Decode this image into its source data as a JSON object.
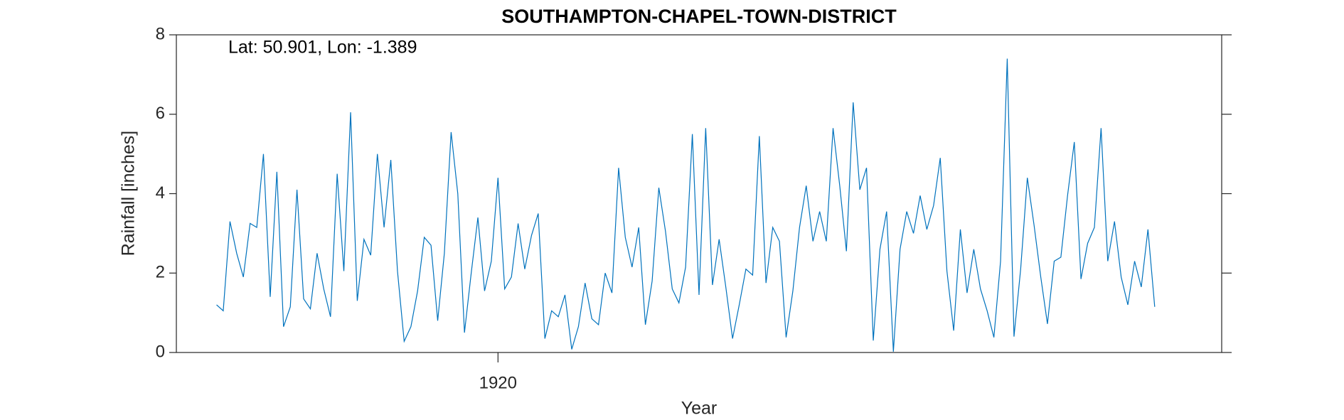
{
  "chart_data": {
    "type": "line",
    "title": "SOUTHAMPTON-CHAPEL-TOWN-DISTRICT",
    "annotation": "Lat: 50.901, Lon: -1.389",
    "x_label": "Year",
    "y_label": "Rainfall [inches]",
    "xlim": [
      1916,
      1929
    ],
    "xticks": [
      1920
    ],
    "ylim": [
      0,
      8
    ],
    "yticks": [
      0,
      2,
      4,
      6,
      8
    ],
    "x": [
      1916.5,
      1916.583,
      1916.667,
      1916.75,
      1916.833,
      1916.917,
      1917,
      1917.083,
      1917.167,
      1917.25,
      1917.333,
      1917.417,
      1917.5,
      1917.583,
      1917.667,
      1917.75,
      1917.833,
      1917.917,
      1918,
      1918.083,
      1918.167,
      1918.25,
      1918.333,
      1918.417,
      1918.5,
      1918.583,
      1918.667,
      1918.75,
      1918.833,
      1918.917,
      1919,
      1919.083,
      1919.167,
      1919.25,
      1919.333,
      1919.417,
      1919.5,
      1919.583,
      1919.667,
      1919.75,
      1919.833,
      1919.917,
      1920,
      1920.083,
      1920.167,
      1920.25,
      1920.333,
      1920.417,
      1920.5,
      1920.583,
      1920.667,
      1920.75,
      1920.833,
      1920.917,
      1921,
      1921.083,
      1921.167,
      1921.25,
      1921.333,
      1921.417,
      1921.5,
      1921.583,
      1921.667,
      1921.75,
      1921.833,
      1921.917,
      1922,
      1922.083,
      1922.167,
      1922.25,
      1922.333,
      1922.417,
      1922.5,
      1922.583,
      1922.667,
      1922.75,
      1922.833,
      1922.917,
      1923,
      1923.083,
      1923.167,
      1923.25,
      1923.333,
      1923.417,
      1923.5,
      1923.583,
      1923.667,
      1923.75,
      1923.833,
      1923.917,
      1924,
      1924.083,
      1924.167,
      1924.25,
      1924.333,
      1924.417,
      1924.5,
      1924.583,
      1924.667,
      1924.75,
      1924.833,
      1924.917,
      1925,
      1925.083,
      1925.167,
      1925.25,
      1925.333,
      1925.417,
      1925.5,
      1925.583,
      1925.667,
      1925.75,
      1925.833,
      1925.917,
      1926,
      1926.083,
      1926.167,
      1926.25,
      1926.333,
      1926.417,
      1926.5,
      1926.583,
      1926.667,
      1926.75,
      1926.833,
      1926.917,
      1927,
      1927.083,
      1927.167,
      1927.25,
      1927.333,
      1927.417,
      1927.5,
      1927.583,
      1927.667,
      1927.75,
      1927.833,
      1927.917,
      1928,
      1928.083,
      1928.167
    ],
    "series": [
      {
        "color": "#0072bd",
        "values": [
          1.2,
          1.05,
          3.3,
          2.5,
          1.9,
          3.25,
          3.15,
          5.0,
          1.4,
          4.55,
          0.65,
          1.15,
          4.1,
          1.35,
          1.1,
          2.5,
          1.6,
          0.9,
          4.5,
          2.05,
          6.05,
          1.3,
          2.85,
          2.45,
          5.0,
          3.15,
          4.85,
          2.05,
          0.28,
          0.65,
          1.55,
          2.9,
          2.7,
          0.8,
          2.5,
          5.55,
          4.0,
          0.5,
          2.0,
          3.4,
          1.55,
          2.3,
          4.4,
          1.6,
          1.9,
          3.25,
          2.1,
          2.95,
          3.5,
          0.35,
          1.05,
          0.9,
          1.45,
          0.08,
          0.65,
          1.75,
          0.85,
          0.7,
          2.0,
          1.5,
          4.65,
          2.9,
          2.15,
          3.15,
          0.7,
          1.8,
          4.15,
          3.05,
          1.6,
          1.25,
          2.15,
          5.5,
          1.45,
          5.65,
          1.7,
          2.85,
          1.65,
          0.35,
          1.2,
          2.1,
          1.95,
          5.45,
          1.75,
          3.15,
          2.8,
          0.38,
          1.55,
          3.15,
          4.2,
          2.8,
          3.55,
          2.8,
          5.65,
          4.2,
          2.55,
          6.3,
          4.1,
          4.65,
          0.3,
          2.6,
          3.55,
          0.02,
          2.6,
          3.55,
          3.0,
          3.95,
          3.1,
          3.7,
          4.9,
          2.05,
          0.55,
          3.1,
          1.5,
          2.6,
          1.6,
          1.05,
          0.38,
          2.3,
          7.4,
          0.4,
          2.1,
          4.4,
          3.2,
          1.9,
          0.72,
          2.3,
          2.4,
          3.95,
          5.3,
          1.85,
          2.75,
          3.15,
          5.65,
          2.3,
          3.3,
          1.9,
          1.2,
          2.3,
          1.65,
          3.1,
          1.15
        ]
      }
    ]
  }
}
